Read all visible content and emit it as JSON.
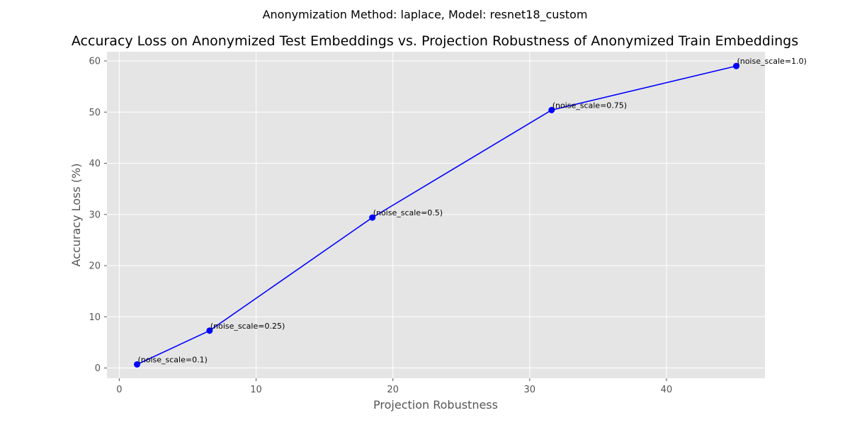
{
  "chart_data": {
    "type": "line",
    "suptitle": "Anonymization Method: laplace, Model: resnet18_custom",
    "title": "Accuracy Loss on Anonymized Test Embeddings vs. Projection Robustness of Anonymized Train Embeddings",
    "xlabel": "Projection Robustness",
    "ylabel": "Accuracy Loss (%)",
    "xlim": [
      -0.9,
      47.2
    ],
    "ylim": [
      -2.0,
      61.8
    ],
    "xticks": [
      0,
      10,
      20,
      30,
      40
    ],
    "yticks": [
      0,
      10,
      20,
      30,
      40,
      50,
      60
    ],
    "grid": true,
    "series": [
      {
        "color": "#0000ff",
        "points": [
          {
            "x": 1.3,
            "y": 0.7,
            "label": "(noise_scale=0.1)"
          },
          {
            "x": 6.6,
            "y": 7.3,
            "label": "(noise_scale=0.25)"
          },
          {
            "x": 18.5,
            "y": 29.4,
            "label": "(noise_scale=0.5)"
          },
          {
            "x": 31.6,
            "y": 50.4,
            "label": "(noise_scale=0.75)"
          },
          {
            "x": 45.1,
            "y": 59.0,
            "label": "(noise_scale=1.0)"
          }
        ]
      }
    ]
  }
}
